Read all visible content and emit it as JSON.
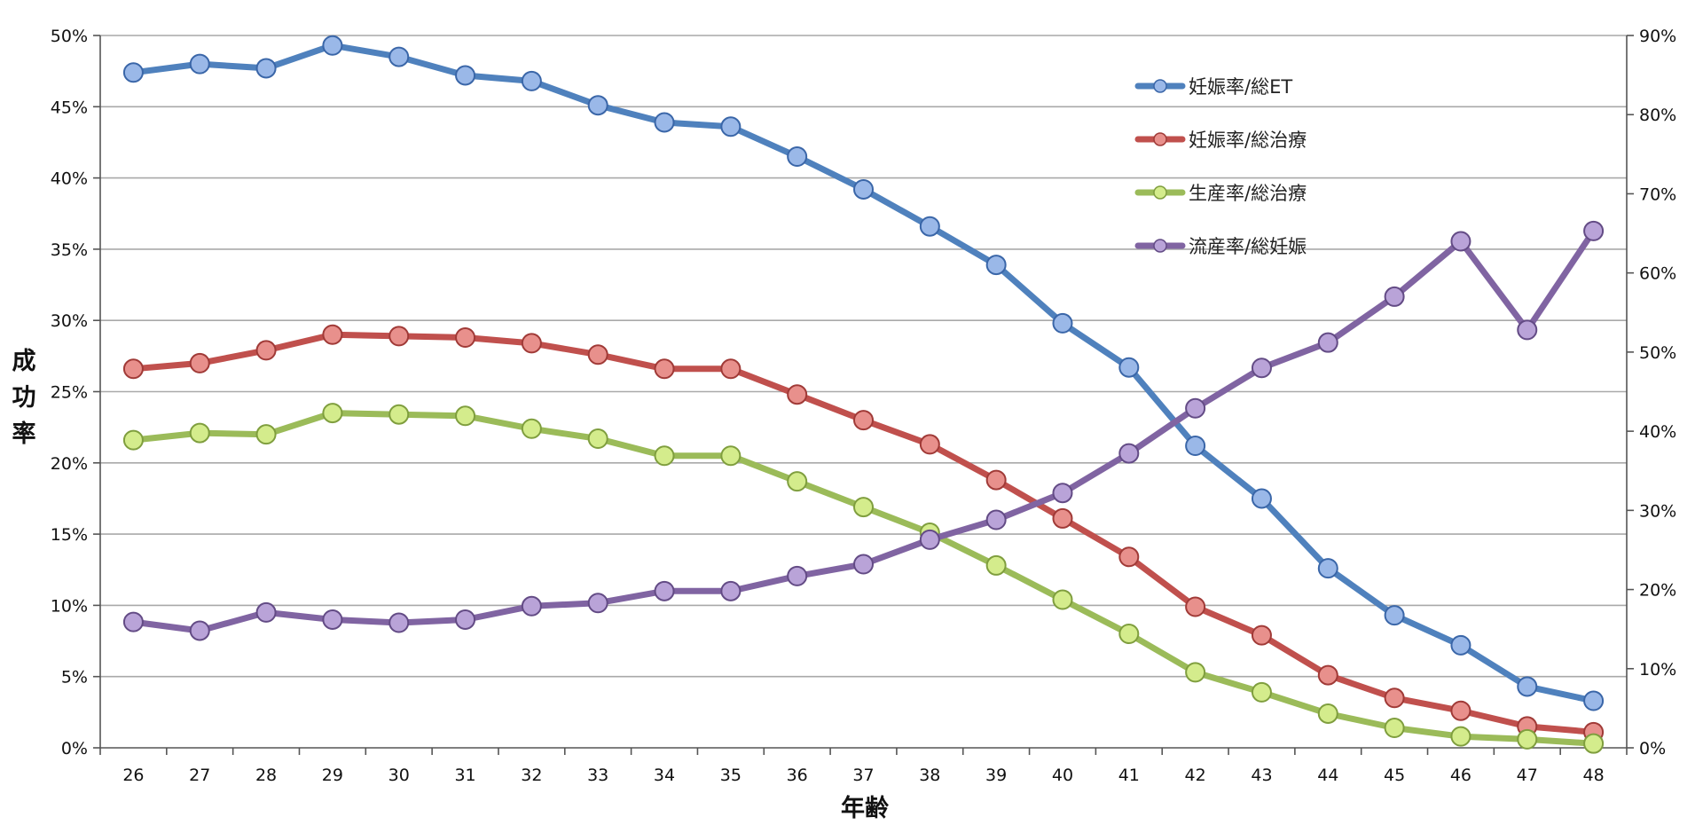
{
  "chart_data": {
    "type": "line",
    "categories": [
      "26",
      "27",
      "28",
      "29",
      "30",
      "31",
      "32",
      "33",
      "34",
      "35",
      "36",
      "37",
      "38",
      "39",
      "40",
      "41",
      "42",
      "43",
      "44",
      "45",
      "46",
      "47",
      "48"
    ],
    "xlabel": "年齢",
    "ylabel": "成功率",
    "y_left": {
      "range": [
        0,
        50
      ],
      "step": 5,
      "tick_labels": [
        "0%",
        "5%",
        "10%",
        "15%",
        "20%",
        "25%",
        "30%",
        "35%",
        "40%",
        "45%",
        "50%"
      ]
    },
    "y_right": {
      "range": [
        0,
        90
      ],
      "step": 10,
      "tick_labels": [
        "0%",
        "10%",
        "20%",
        "30%",
        "40%",
        "50%",
        "60%",
        "70%",
        "80%",
        "90%"
      ]
    },
    "grid": true,
    "legend_position": "top-right",
    "series": [
      {
        "name": "妊娠率/総ET",
        "axis": "left",
        "color": "#4f81bd",
        "marker": "#9ab8e8",
        "marker_edge": "#3a66a8",
        "values": [
          47.4,
          48.0,
          47.7,
          49.3,
          48.5,
          47.2,
          46.8,
          45.1,
          43.9,
          43.6,
          41.5,
          39.2,
          36.6,
          33.9,
          29.8,
          26.7,
          21.2,
          17.5,
          12.6,
          9.3,
          7.2,
          4.3,
          3.3
        ]
      },
      {
        "name": "妊娠率/総治療",
        "axis": "left",
        "color": "#c0504d",
        "marker": "#e8908c",
        "marker_edge": "#a03a37",
        "values": [
          26.6,
          27.0,
          27.9,
          29.0,
          28.9,
          28.8,
          28.4,
          27.6,
          26.6,
          26.6,
          24.8,
          23.0,
          21.3,
          18.8,
          16.1,
          13.4,
          9.9,
          7.9,
          5.1,
          3.5,
          2.6,
          1.5,
          1.1
        ]
      },
      {
        "name": "生産率/総治療",
        "axis": "left",
        "color": "#9bbb59",
        "marker": "#d4ec8c",
        "marker_edge": "#7f9e3e",
        "values": [
          21.6,
          22.1,
          22.0,
          23.5,
          23.4,
          23.3,
          22.4,
          21.7,
          20.5,
          20.5,
          18.7,
          16.9,
          15.1,
          12.8,
          10.4,
          8.0,
          5.3,
          3.9,
          2.4,
          1.4,
          0.8,
          0.6,
          0.3
        ]
      },
      {
        "name": "流産率/総妊娠",
        "axis": "right",
        "color": "#8064a2",
        "marker": "#b9a3d8",
        "marker_edge": "#634b85",
        "values": [
          15.9,
          14.8,
          17.1,
          16.2,
          15.8,
          16.2,
          17.9,
          18.3,
          19.8,
          19.8,
          21.7,
          23.2,
          26.3,
          28.8,
          32.2,
          37.2,
          42.9,
          48.0,
          51.2,
          57.0,
          64.0,
          52.8,
          65.3
        ]
      }
    ]
  }
}
